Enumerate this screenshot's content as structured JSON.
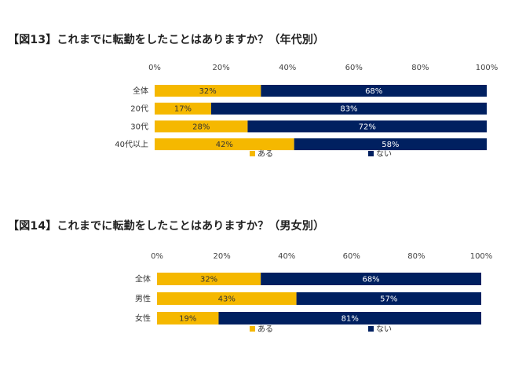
{
  "colors": {
    "aru": "#f5b800",
    "nai": "#002060",
    "label_on_yellow": "#333333",
    "label_on_navy": "#ffffff"
  },
  "chart_data": [
    {
      "type": "bar",
      "orientation": "horizontal",
      "stacked": "100%",
      "title": "【図13】これまでに転勤をしたことはありますか？（年代別）",
      "categories": [
        "全体",
        "20代",
        "30代",
        "40代以上"
      ],
      "series": [
        {
          "name": "ある",
          "values": [
            32,
            17,
            28,
            42
          ],
          "labels": [
            "32%",
            "17%",
            "28%",
            "42%"
          ]
        },
        {
          "name": "ない",
          "values": [
            68,
            83,
            72,
            58
          ],
          "labels": [
            "68%",
            "83%",
            "72%",
            "58%"
          ]
        }
      ],
      "xticks": [
        "0%",
        "20%",
        "40%",
        "60%",
        "80%",
        "100%"
      ],
      "xlim": [
        0,
        100
      ],
      "grid": false,
      "legend_position": "bottom"
    },
    {
      "type": "bar",
      "orientation": "horizontal",
      "stacked": "100%",
      "title": "【図14】これまでに転勤をしたことはありますか？（男女別）",
      "categories": [
        "全体",
        "男性",
        "女性"
      ],
      "series": [
        {
          "name": "ある",
          "values": [
            32,
            43,
            19
          ],
          "labels": [
            "32%",
            "43%",
            "19%"
          ]
        },
        {
          "name": "ない",
          "values": [
            68,
            57,
            81
          ],
          "labels": [
            "68%",
            "57%",
            "81%"
          ]
        }
      ],
      "xticks": [
        "0%",
        "20%",
        "40%",
        "60%",
        "80%",
        "100%"
      ],
      "xlim": [
        0,
        100
      ],
      "grid": false,
      "legend_position": "bottom"
    }
  ]
}
